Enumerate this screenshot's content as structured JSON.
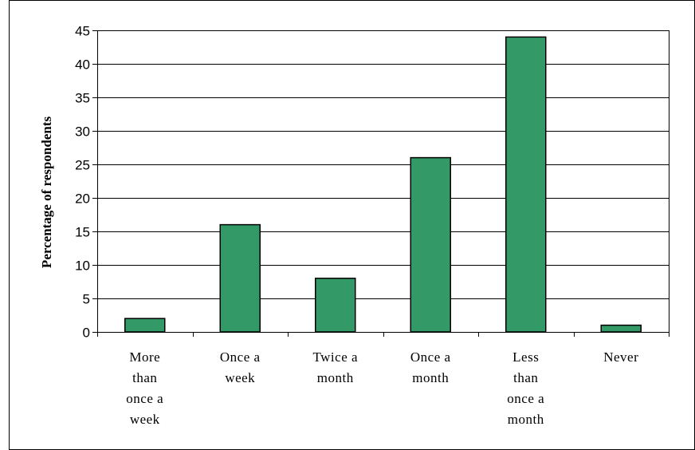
{
  "chart_data": {
    "type": "bar",
    "title": "",
    "xlabel": "",
    "ylabel": "Percentage of respondents",
    "ylim": [
      0,
      45
    ],
    "yticks": [
      0,
      5,
      10,
      15,
      20,
      25,
      30,
      35,
      40,
      45
    ],
    "grid": true,
    "legend": "none",
    "bar_color": "#339966",
    "categories": [
      [
        "More",
        "than",
        "once a",
        "week"
      ],
      [
        "Once a",
        "week"
      ],
      [
        "Twice a",
        "month"
      ],
      [
        "Once a",
        "month"
      ],
      [
        "Less",
        "than",
        "once a",
        "month"
      ],
      [
        "Never"
      ]
    ],
    "values": [
      2,
      16,
      8,
      26,
      44,
      1
    ]
  }
}
